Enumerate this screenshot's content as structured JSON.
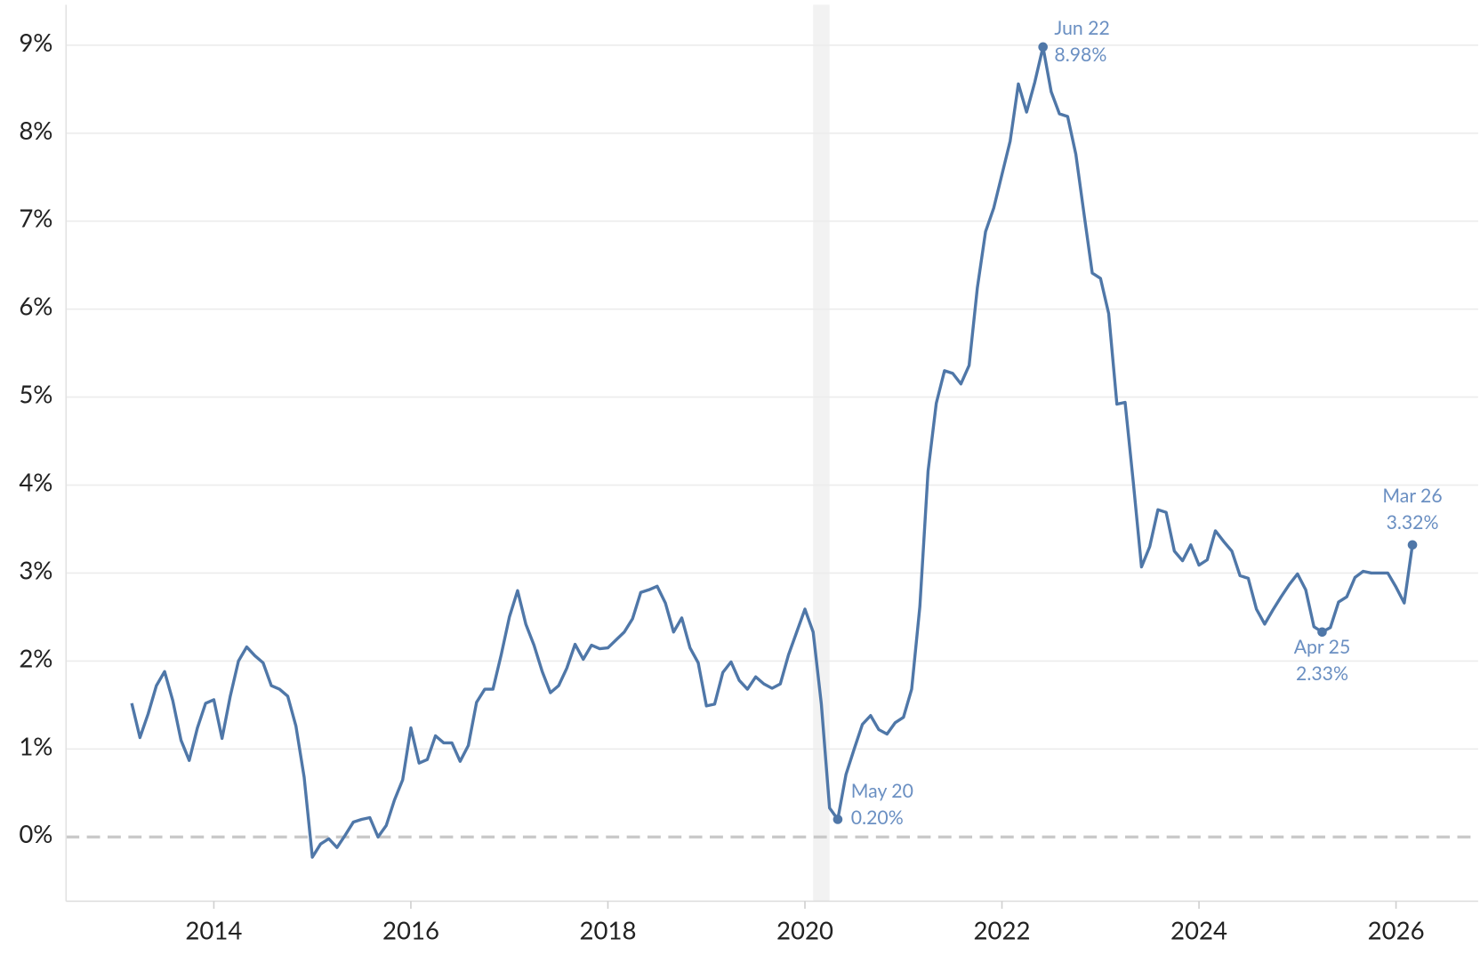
{
  "chart_data": {
    "type": "line",
    "x": [
      "2013-03",
      "2013-04",
      "2013-05",
      "2013-06",
      "2013-07",
      "2013-08",
      "2013-09",
      "2013-10",
      "2013-11",
      "2013-12",
      "2014-01",
      "2014-02",
      "2014-03",
      "2014-04",
      "2014-05",
      "2014-06",
      "2014-07",
      "2014-08",
      "2014-09",
      "2014-10",
      "2014-11",
      "2014-12",
      "2015-01",
      "2015-02",
      "2015-03",
      "2015-04",
      "2015-05",
      "2015-06",
      "2015-07",
      "2015-08",
      "2015-09",
      "2015-10",
      "2015-11",
      "2015-12",
      "2016-01",
      "2016-02",
      "2016-03",
      "2016-04",
      "2016-05",
      "2016-06",
      "2016-07",
      "2016-08",
      "2016-09",
      "2016-10",
      "2016-11",
      "2016-12",
      "2017-01",
      "2017-02",
      "2017-03",
      "2017-04",
      "2017-05",
      "2017-06",
      "2017-07",
      "2017-08",
      "2017-09",
      "2017-10",
      "2017-11",
      "2017-12",
      "2018-01",
      "2018-02",
      "2018-03",
      "2018-04",
      "2018-05",
      "2018-06",
      "2018-07",
      "2018-08",
      "2018-09",
      "2018-10",
      "2018-11",
      "2018-12",
      "2019-01",
      "2019-02",
      "2019-03",
      "2019-04",
      "2019-05",
      "2019-06",
      "2019-07",
      "2019-08",
      "2019-09",
      "2019-10",
      "2019-11",
      "2019-12",
      "2020-01",
      "2020-02",
      "2020-03",
      "2020-04",
      "2020-05",
      "2020-06",
      "2020-07",
      "2020-08",
      "2020-09",
      "2020-10",
      "2020-11",
      "2020-12",
      "2021-01",
      "2021-02",
      "2021-03",
      "2021-04",
      "2021-05",
      "2021-06",
      "2021-07",
      "2021-08",
      "2021-09",
      "2021-10",
      "2021-11",
      "2021-12",
      "2022-01",
      "2022-02",
      "2022-03",
      "2022-04",
      "2022-05",
      "2022-06",
      "2022-07",
      "2022-08",
      "2022-09",
      "2022-10",
      "2022-11",
      "2022-12",
      "2023-01",
      "2023-02",
      "2023-03",
      "2023-04",
      "2023-05",
      "2023-06",
      "2023-07",
      "2023-08",
      "2023-09",
      "2023-10",
      "2023-11",
      "2023-12",
      "2024-01",
      "2024-02",
      "2024-03",
      "2024-04",
      "2024-05",
      "2024-06",
      "2024-07",
      "2024-08",
      "2024-09",
      "2024-10",
      "2024-11",
      "2024-12",
      "2025-01",
      "2025-02",
      "2025-03",
      "2025-04",
      "2025-05",
      "2025-06",
      "2025-07",
      "2025-08",
      "2025-09",
      "2025-10",
      "2025-11",
      "2025-12",
      "2026-01",
      "2026-02",
      "2026-03"
    ],
    "series": [
      {
        "color": "#4f77a8",
        "values": [
          1.52,
          1.13,
          1.4,
          1.72,
          1.88,
          1.55,
          1.1,
          0.87,
          1.24,
          1.52,
          1.56,
          1.12,
          1.6,
          2.0,
          2.16,
          2.06,
          1.98,
          1.72,
          1.68,
          1.6,
          1.26,
          0.68,
          -0.23,
          -0.08,
          -0.02,
          -0.12,
          0.02,
          0.17,
          0.2,
          0.22,
          0.0,
          0.13,
          0.42,
          0.65,
          1.24,
          0.84,
          0.88,
          1.15,
          1.07,
          1.07,
          0.86,
          1.04,
          1.53,
          1.68,
          1.68,
          2.07,
          2.5,
          2.8,
          2.42,
          2.18,
          1.88,
          1.64,
          1.72,
          1.92,
          2.19,
          2.02,
          2.18,
          2.14,
          2.15,
          2.24,
          2.33,
          2.48,
          2.78,
          2.81,
          2.85,
          2.66,
          2.33,
          2.49,
          2.15,
          1.98,
          1.49,
          1.51,
          1.87,
          1.99,
          1.78,
          1.68,
          1.82,
          1.74,
          1.69,
          1.74,
          2.07,
          2.33,
          2.59,
          2.33,
          1.51,
          0.33,
          0.2,
          0.71,
          1.0,
          1.28,
          1.38,
          1.22,
          1.17,
          1.3,
          1.36,
          1.68,
          2.62,
          4.16,
          4.93,
          5.3,
          5.27,
          5.15,
          5.36,
          6.24,
          6.88,
          7.15,
          7.53,
          7.91,
          8.56,
          8.24,
          8.58,
          8.98,
          8.47,
          8.22,
          8.19,
          7.76,
          7.08,
          6.41,
          6.35,
          5.95,
          4.92,
          4.94,
          4.03,
          3.07,
          3.3,
          3.72,
          3.69,
          3.25,
          3.14,
          3.32,
          3.09,
          3.15,
          3.48,
          3.36,
          3.25,
          2.97,
          2.94,
          2.59,
          2.42,
          2.58,
          2.73,
          2.87,
          2.99,
          2.81,
          2.39,
          2.33,
          2.38,
          2.67,
          2.73,
          2.95,
          3.02,
          3.0,
          3.0,
          3.0,
          2.84,
          2.66,
          3.32
        ]
      }
    ],
    "annotations": [
      {
        "x": "2022-06",
        "value": 8.98,
        "label": "Jun 22",
        "value_label": "8.98%"
      },
      {
        "x": "2020-05",
        "value": 0.2,
        "label": "May 20",
        "value_label": "0.20%"
      },
      {
        "x": "2025-04",
        "value": 2.33,
        "label": "Apr 25",
        "value_label": "2.33%"
      },
      {
        "x": "2026-03",
        "value": 3.32,
        "label": "Mar 26",
        "value_label": "3.32%"
      }
    ],
    "shaded": [
      "2020-02",
      "2020-04"
    ],
    "xlim": [
      "2012-07",
      "2026-11"
    ],
    "xticks": [
      {
        "value": "2014-01",
        "label": "2014"
      },
      {
        "value": "2016-01",
        "label": "2016"
      },
      {
        "value": "2018-01",
        "label": "2018"
      },
      {
        "value": "2020-01",
        "label": "2020"
      },
      {
        "value": "2022-01",
        "label": "2022"
      },
      {
        "value": "2024-01",
        "label": "2024"
      },
      {
        "value": "2026-01",
        "label": "2026"
      }
    ],
    "ylim": [
      -0.73,
      9.46
    ],
    "yticks": [
      {
        "value": 0,
        "label": "0%"
      },
      {
        "value": 1,
        "label": "1%"
      },
      {
        "value": 2,
        "label": "2%"
      },
      {
        "value": 3,
        "label": "3%"
      },
      {
        "value": 4,
        "label": "4%"
      },
      {
        "value": 5,
        "label": "5%"
      },
      {
        "value": 6,
        "label": "6%"
      },
      {
        "value": 7,
        "label": "7%"
      },
      {
        "value": 8,
        "label": "8%"
      },
      {
        "value": 9,
        "label": "9%"
      }
    ],
    "grid": true,
    "zero_line": "dashed"
  }
}
